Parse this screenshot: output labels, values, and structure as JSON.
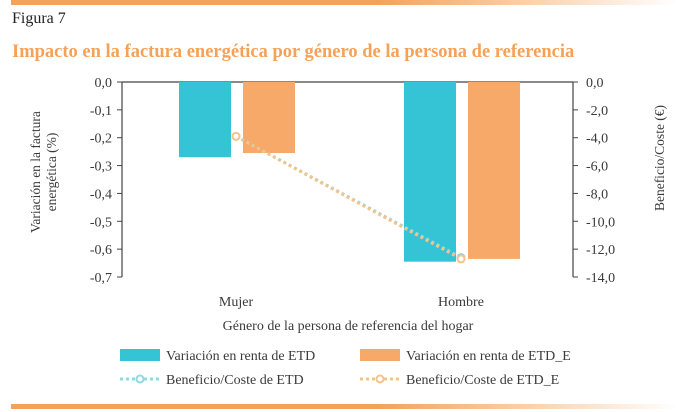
{
  "figure_label": "Figura 7",
  "colors": {
    "accent": "#f4a259",
    "bar1": "#35c3d6",
    "bar2": "#f6a968",
    "line1": "#92d8e2",
    "line2": "#f6c28c",
    "axis": "#444444"
  },
  "chart_data": {
    "type": "bar",
    "title": "Impacto en la factura energética por género de la persona de referencia",
    "xlabel": "Género de la persona de referencia del hogar",
    "ylabel": "Variación en la factura energética (%)",
    "y2label": "Beneficio/Coste (€)",
    "categories": [
      "Mujer",
      "Hombre"
    ],
    "ylim": [
      -0.7,
      0.0
    ],
    "y_ticks": [
      "0,0",
      "-0,1",
      "-0,2",
      "-0,3",
      "-0,4",
      "-0,5",
      "-0,6",
      "-0,7"
    ],
    "y2lim": [
      -14.0,
      0.0
    ],
    "y2_ticks": [
      "0,0",
      "-2,0",
      "-4,0",
      "-6,0",
      "-8,0",
      "-10,0",
      "-12,0",
      "-14,0"
    ],
    "grid": false,
    "legend_position": "bottom",
    "series": [
      {
        "name": "Variación en renta de ETD",
        "kind": "bar",
        "axis": "left",
        "values": [
          -0.27,
          -0.645
        ]
      },
      {
        "name": "Variación en renta de ETD_E",
        "kind": "bar",
        "axis": "left",
        "values": [
          -0.255,
          -0.635
        ]
      },
      {
        "name": "Beneficio/Coste de ETD",
        "kind": "line",
        "axis": "right",
        "values": [
          -3.9,
          -12.6
        ]
      },
      {
        "name": "Beneficio/Coste de ETD_E",
        "kind": "line",
        "axis": "right",
        "values": [
          -3.9,
          -12.7
        ]
      }
    ]
  }
}
